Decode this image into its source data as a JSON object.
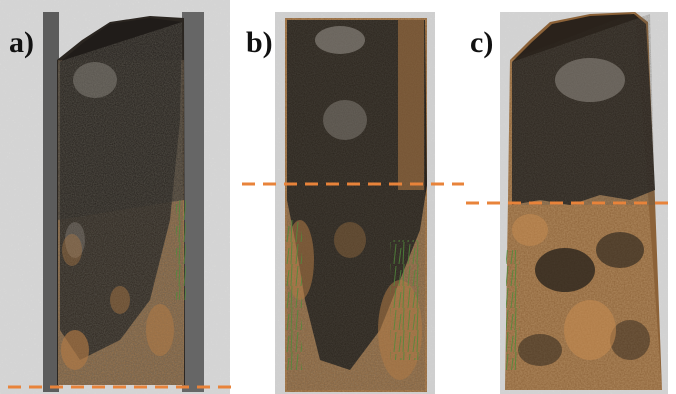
{
  "panels": [
    {
      "label": "a)"
    },
    {
      "label": "b)"
    },
    {
      "label": "c)"
    }
  ],
  "colors": {
    "background": "#ffffff",
    "dashed_line": "#e8833a",
    "char_dark": "#1f1c18",
    "char_mid": "#3b342b",
    "burnt_litter_orange": "#b07a45",
    "unburnt_straw": "#c89a63",
    "grass_green": "#4f8a3a",
    "frame_gray": "#5c5c5c",
    "floor_concrete": "#cfcfcf"
  }
}
